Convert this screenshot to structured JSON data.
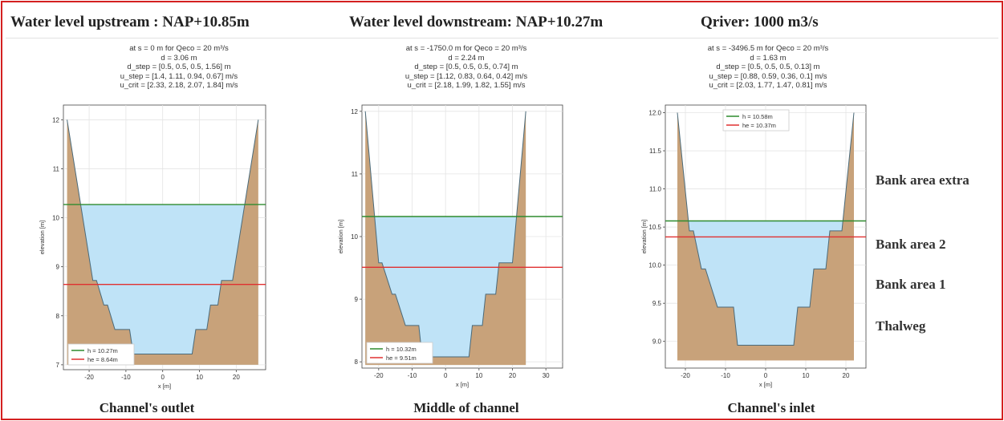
{
  "headers": {
    "upstream": "Water level upstream : NAP+10.85m",
    "downstream": "Water level downstream: NAP+10.27m",
    "discharge": "Qriver: 1000 m3/s"
  },
  "zone_labels": [
    "Bank area extra",
    "Bank area 2",
    "Bank area 1",
    "Thalweg"
  ],
  "colors": {
    "bed": "#c8a27a",
    "water": "#bfe3f7",
    "h_line": "#2e8b2e",
    "he_line": "#e03030",
    "frame": "#d42020"
  },
  "chart_data": [
    {
      "type": "area",
      "caption": "Channel's outlet",
      "info": [
        "at s = 0 m for Qeco = 20 m³/s",
        "d = 3.06 m",
        "d_step = [0.5, 0.5, 0.5, 1.56] m",
        "u_step = [1.4, 1.11, 0.94, 0.67] m/s",
        "u_crit = [2.33, 2.18, 2.07, 1.84] m/s"
      ],
      "xlabel": "x [m]",
      "ylabel": "elevation [m]",
      "xlim": [
        -27,
        28
      ],
      "ylim": [
        6.9,
        12.3
      ],
      "xticks": [
        -20,
        -10,
        0,
        10,
        20
      ],
      "yticks": [
        7,
        8,
        9,
        10,
        11,
        12
      ],
      "ytick_labels": [
        "7",
        "8",
        "9",
        "10",
        "11",
        "12"
      ],
      "bottom": 7.0,
      "bed_x": [
        -26,
        -19,
        -18,
        -16,
        -15,
        -13,
        -12,
        -9,
        -8,
        -6,
        6,
        8,
        9,
        12,
        13,
        15,
        16,
        18,
        19,
        26
      ],
      "bed_y": [
        12.0,
        8.72,
        8.72,
        8.22,
        8.22,
        7.72,
        7.72,
        7.72,
        7.22,
        7.22,
        7.22,
        7.22,
        7.72,
        7.72,
        8.22,
        8.22,
        8.72,
        8.72,
        8.72,
        12.0
      ],
      "h": 10.27,
      "he": 8.64,
      "legend": [
        "h = 10.27m",
        "he = 8.64m"
      ],
      "legend_position": "lower-left"
    },
    {
      "type": "area",
      "caption": "Middle of channel",
      "info": [
        "at s = -1750.0 m for Qeco = 20 m³/s",
        "d = 2.24 m",
        "d_step = [0.5, 0.5, 0.5, 0.74] m",
        "u_step = [1.12, 0.83, 0.64, 0.42] m/s",
        "u_crit = [2.18, 1.99, 1.82, 1.55] m/s"
      ],
      "xlabel": "x [m]",
      "ylabel": "elevation [m]",
      "xlim": [
        -25,
        35
      ],
      "ylim": [
        7.9,
        12.1
      ],
      "xticks": [
        -20,
        -10,
        0,
        10,
        20,
        30
      ],
      "yticks": [
        8,
        9,
        10,
        11,
        12
      ],
      "ytick_labels": [
        "8",
        "9",
        "10",
        "11",
        "12"
      ],
      "bottom": 7.95,
      "bed_x": [
        -24,
        -20,
        -19,
        -16,
        -15,
        -12,
        -11,
        -8,
        -7,
        -5,
        5,
        7,
        8,
        11,
        12,
        15,
        16,
        19,
        20,
        24
      ],
      "bed_y": [
        12.0,
        9.58,
        9.58,
        9.08,
        9.08,
        8.58,
        8.58,
        8.58,
        8.08,
        8.08,
        8.08,
        8.08,
        8.58,
        8.58,
        9.08,
        9.08,
        9.58,
        9.58,
        9.58,
        12.0
      ],
      "h": 10.32,
      "he": 9.51,
      "legend": [
        "h = 10.32m",
        "he = 9.51m"
      ],
      "legend_position": "lower-left"
    },
    {
      "type": "area",
      "caption": "Channel's inlet",
      "info": [
        "at s = -3496.5 m for Qeco = 20 m³/s",
        "d = 1.63 m",
        "d_step = [0.5, 0.5, 0.5, 0.13] m",
        "u_step = [0.88, 0.59, 0.36, 0.1] m/s",
        "u_crit = [2.03, 1.77, 1.47, 0.81] m/s"
      ],
      "xlabel": "x [m]",
      "ylabel": "elevation [m]",
      "xlim": [
        -25,
        25
      ],
      "ylim": [
        8.65,
        12.1
      ],
      "xticks": [
        -20,
        -10,
        0,
        10,
        20
      ],
      "yticks": [
        9.0,
        9.5,
        10.0,
        10.5,
        11.0,
        11.5,
        12.0
      ],
      "ytick_labels": [
        "9.0",
        "9.5",
        "10.0",
        "10.5",
        "11.0",
        "11.5",
        "12.0"
      ],
      "bottom": 8.75,
      "bed_x": [
        -22,
        -19,
        -18,
        -16,
        -15,
        -12,
        -11,
        -8,
        -7,
        -5,
        5,
        7,
        8,
        11,
        12,
        15,
        16,
        18,
        19,
        22
      ],
      "bed_y": [
        12.0,
        10.45,
        10.45,
        9.95,
        9.95,
        9.45,
        9.45,
        9.45,
        8.95,
        8.95,
        8.95,
        8.95,
        9.45,
        9.45,
        9.95,
        9.95,
        10.45,
        10.45,
        10.45,
        12.0
      ],
      "h": 10.58,
      "he": 10.37,
      "legend": [
        "h = 10.58m",
        "he = 10.37m"
      ],
      "legend_position": "upper-center"
    }
  ]
}
